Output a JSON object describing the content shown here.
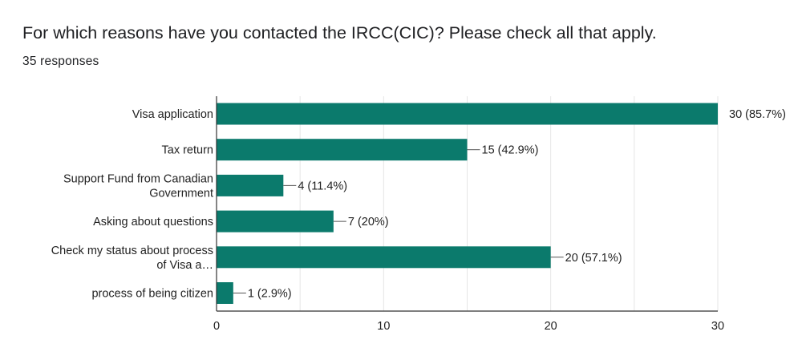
{
  "header": {
    "question": "For which reasons have you contacted the IRCC(CIC)? Please check all that apply.",
    "responses": "35 responses"
  },
  "chart_data": {
    "type": "bar",
    "orientation": "horizontal",
    "categories": [
      [
        "Visa application"
      ],
      [
        "Tax return"
      ],
      [
        "Support Fund from Canadian",
        "Government"
      ],
      [
        "Asking about questions"
      ],
      [
        "Check my status about process",
        "of Visa a…"
      ],
      [
        "process of being citizen"
      ]
    ],
    "values": [
      30,
      15,
      4,
      7,
      20,
      1
    ],
    "data_labels": [
      "30 (85.7%)",
      "15 (42.9%)",
      "4 (11.4%)",
      "7 (20%)",
      "20 (57.1%)",
      "1 (2.9%)"
    ],
    "xlim": [
      0,
      30
    ],
    "x_ticks": [
      0,
      10,
      20,
      30
    ],
    "grid": true,
    "bar_color": "#0b7a6c"
  }
}
